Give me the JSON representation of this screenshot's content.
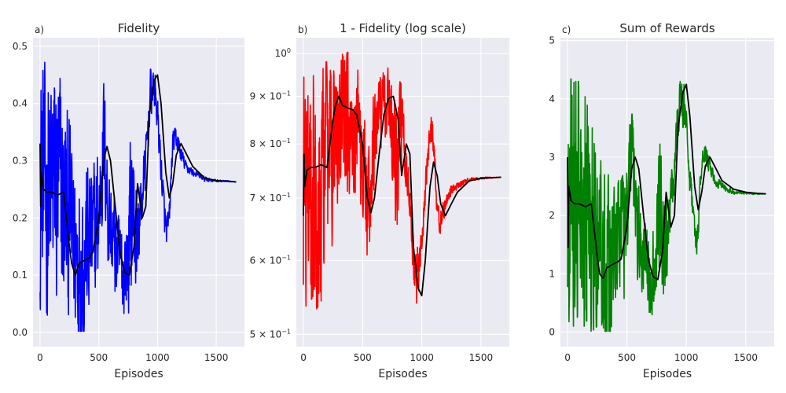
{
  "figure": {
    "background": "#ffffff",
    "axes_background": "#eaeaf2",
    "grid_color": "#ffffff",
    "smooth_color": "#000000"
  },
  "chart_data": [
    {
      "type": "line",
      "panel_label": "a)",
      "title": "Fidelity",
      "xlabel": "Episodes",
      "ylabel": "",
      "xlim": [
        -60,
        1740
      ],
      "ylim": [
        -0.025,
        0.515
      ],
      "x_ticks": [
        0,
        500,
        1000,
        1500
      ],
      "y_ticks": [
        0.0,
        0.1,
        0.2,
        0.3,
        0.4,
        0.5
      ],
      "y_tick_labels": [
        "0.0",
        "0.1",
        "0.2",
        "0.3",
        "0.4",
        "0.5"
      ],
      "yscale": "linear",
      "grid": true,
      "series": [
        {
          "color": "#0000ff",
          "width": 1.6,
          "noise": true,
          "x": [
            0,
            50,
            100,
            150,
            200,
            250,
            300,
            350,
            400,
            450,
            500,
            540,
            560,
            580,
            620,
            660,
            700,
            740,
            780,
            800,
            820,
            860,
            900,
            940,
            980,
            1000,
            1020,
            1060,
            1080,
            1100,
            1130,
            1160,
            1200,
            1240,
            1300,
            1400,
            1500,
            1600,
            1670
          ],
          "y": [
            0.26,
            0.25,
            0.25,
            0.24,
            0.22,
            0.2,
            0.15,
            0.14,
            0.15,
            0.16,
            0.2,
            0.34,
            0.29,
            0.21,
            0.16,
            0.13,
            0.11,
            0.12,
            0.22,
            0.2,
            0.16,
            0.22,
            0.3,
            0.42,
            0.42,
            0.38,
            0.32,
            0.2,
            0.17,
            0.2,
            0.33,
            0.34,
            0.31,
            0.29,
            0.28,
            0.268,
            0.265,
            0.264,
            0.263
          ],
          "amp": [
            0.22,
            0.22,
            0.22,
            0.22,
            0.2,
            0.17,
            0.15,
            0.16,
            0.14,
            0.13,
            0.12,
            0.1,
            0.1,
            0.1,
            0.09,
            0.08,
            0.07,
            0.1,
            0.16,
            0.12,
            0.1,
            0.05,
            0.04,
            0.04,
            0.04,
            0.03,
            0.03,
            0.03,
            0.03,
            0.025,
            0.02,
            0.02,
            0.015,
            0.01,
            0.006,
            0.004,
            0.002,
            0.001,
            0.0
          ]
        },
        {
          "color": "#000000",
          "width": 1.8,
          "noise": false,
          "x": [
            0,
            5,
            10,
            30,
            60,
            100,
            150,
            200,
            250,
            270,
            300,
            330,
            370,
            420,
            450,
            500,
            540,
            570,
            600,
            640,
            680,
            720,
            760,
            800,
            830,
            870,
            900,
            930,
            970,
            1000,
            1030,
            1070,
            1100,
            1130,
            1160,
            1200,
            1250,
            1300,
            1400,
            1500,
            1600,
            1670
          ],
          "y": [
            0.33,
            0.22,
            0.28,
            0.25,
            0.245,
            0.245,
            0.24,
            0.245,
            0.15,
            0.12,
            0.1,
            0.12,
            0.125,
            0.13,
            0.14,
            0.2,
            0.3,
            0.325,
            0.3,
            0.22,
            0.14,
            0.105,
            0.1,
            0.15,
            0.26,
            0.2,
            0.22,
            0.38,
            0.44,
            0.45,
            0.4,
            0.28,
            0.235,
            0.26,
            0.31,
            0.33,
            0.31,
            0.29,
            0.27,
            0.265,
            0.264,
            0.263
          ]
        }
      ]
    },
    {
      "type": "line",
      "panel_label": "b)",
      "title": "1 - Fidelity (log scale)",
      "xlabel": "Episodes",
      "ylabel": "",
      "xlim": [
        -60,
        1740
      ],
      "ylim": [
        0.485,
        1.04
      ],
      "x_ticks": [
        0,
        500,
        1000,
        1500
      ],
      "y_ticks": [
        0.5,
        0.6,
        0.7,
        0.8,
        0.9,
        1.0
      ],
      "y_tick_labels": [
        "5 × 10⁻¹",
        "6 × 10⁻¹",
        "7 × 10⁻¹",
        "8 × 10⁻¹",
        "9 × 10⁻¹",
        "10⁰"
      ],
      "yscale": "log",
      "grid": true,
      "series": [
        {
          "color": "#ff0000",
          "width": 1.6,
          "noise": true,
          "x": [
            0,
            50,
            100,
            150,
            200,
            250,
            300,
            350,
            400,
            450,
            500,
            540,
            560,
            580,
            620,
            660,
            700,
            740,
            780,
            800,
            820,
            860,
            900,
            940,
            980,
            1000,
            1020,
            1060,
            1080,
            1100,
            1130,
            1160,
            1200,
            1240,
            1300,
            1400,
            1500,
            1600,
            1670
          ],
          "y": [
            0.74,
            0.75,
            0.75,
            0.76,
            0.78,
            0.8,
            0.85,
            0.86,
            0.85,
            0.84,
            0.8,
            0.66,
            0.71,
            0.79,
            0.84,
            0.87,
            0.89,
            0.88,
            0.78,
            0.8,
            0.84,
            0.78,
            0.7,
            0.58,
            0.58,
            0.62,
            0.68,
            0.8,
            0.83,
            0.8,
            0.67,
            0.66,
            0.69,
            0.71,
            0.72,
            0.732,
            0.735,
            0.736,
            0.737
          ],
          "amp": [
            0.22,
            0.22,
            0.22,
            0.22,
            0.2,
            0.17,
            0.15,
            0.16,
            0.14,
            0.13,
            0.12,
            0.1,
            0.1,
            0.1,
            0.09,
            0.08,
            0.07,
            0.1,
            0.16,
            0.12,
            0.1,
            0.05,
            0.04,
            0.04,
            0.04,
            0.03,
            0.03,
            0.03,
            0.03,
            0.025,
            0.02,
            0.02,
            0.015,
            0.01,
            0.006,
            0.004,
            0.002,
            0.001,
            0.0
          ]
        },
        {
          "color": "#000000",
          "width": 1.8,
          "noise": false,
          "x": [
            0,
            5,
            10,
            30,
            60,
            100,
            150,
            200,
            250,
            270,
            300,
            330,
            370,
            420,
            450,
            500,
            540,
            570,
            600,
            640,
            680,
            720,
            760,
            800,
            830,
            870,
            900,
            930,
            970,
            1000,
            1030,
            1070,
            1100,
            1130,
            1160,
            1200,
            1250,
            1300,
            1400,
            1500,
            1600,
            1670
          ],
          "y": [
            0.67,
            0.78,
            0.72,
            0.75,
            0.755,
            0.755,
            0.76,
            0.755,
            0.85,
            0.88,
            0.9,
            0.88,
            0.875,
            0.87,
            0.86,
            0.8,
            0.7,
            0.675,
            0.7,
            0.78,
            0.86,
            0.895,
            0.9,
            0.85,
            0.74,
            0.8,
            0.78,
            0.62,
            0.56,
            0.55,
            0.6,
            0.72,
            0.765,
            0.74,
            0.69,
            0.67,
            0.69,
            0.71,
            0.73,
            0.735,
            0.736,
            0.737
          ]
        }
      ]
    },
    {
      "type": "line",
      "panel_label": "c)",
      "title": "Sum of Rewards",
      "xlabel": "Episodes",
      "ylabel": "",
      "xlim": [
        -60,
        1740
      ],
      "ylim": [
        -0.25,
        5.05
      ],
      "x_ticks": [
        0,
        500,
        1000,
        1500
      ],
      "y_ticks": [
        0,
        1,
        2,
        3,
        4,
        5
      ],
      "y_tick_labels": [
        "0",
        "1",
        "2",
        "3",
        "4",
        "5"
      ],
      "yscale": "linear",
      "grid": true,
      "series": [
        {
          "color": "#008000",
          "width": 1.6,
          "noise": true,
          "x": [
            0,
            50,
            100,
            150,
            200,
            250,
            300,
            350,
            400,
            450,
            500,
            540,
            560,
            580,
            620,
            660,
            700,
            740,
            780,
            800,
            820,
            860,
            900,
            940,
            980,
            1000,
            1020,
            1060,
            1080,
            1100,
            1130,
            1160,
            1200,
            1240,
            1300,
            1400,
            1500,
            1600,
            1670
          ],
          "y": [
            2.3,
            2.2,
            2.2,
            2.1,
            1.9,
            1.7,
            1.3,
            1.2,
            1.3,
            1.4,
            1.8,
            3.1,
            2.6,
            1.9,
            1.4,
            1.1,
            0.9,
            1.0,
            2.0,
            1.8,
            1.4,
            2.0,
            2.8,
            3.9,
            3.9,
            3.5,
            2.9,
            1.8,
            1.5,
            1.8,
            3.0,
            3.1,
            2.8,
            2.6,
            2.5,
            2.4,
            2.38,
            2.37,
            2.37
          ],
          "amp": [
            2.1,
            2.1,
            2.1,
            2.1,
            1.9,
            1.6,
            1.4,
            1.5,
            1.3,
            1.2,
            1.1,
            0.9,
            0.9,
            0.9,
            0.8,
            0.7,
            0.65,
            0.9,
            1.5,
            1.1,
            0.9,
            0.45,
            0.4,
            0.4,
            0.4,
            0.3,
            0.3,
            0.3,
            0.3,
            0.25,
            0.2,
            0.2,
            0.14,
            0.1,
            0.06,
            0.04,
            0.02,
            0.01,
            0.0
          ]
        },
        {
          "color": "#000000",
          "width": 1.8,
          "noise": false,
          "x": [
            0,
            5,
            10,
            30,
            60,
            100,
            150,
            200,
            250,
            270,
            300,
            330,
            370,
            420,
            450,
            500,
            540,
            570,
            600,
            640,
            680,
            720,
            760,
            800,
            830,
            870,
            900,
            930,
            970,
            1000,
            1030,
            1070,
            1100,
            1130,
            1160,
            1200,
            1250,
            1300,
            1400,
            1500,
            1600,
            1670
          ],
          "y": [
            3.0,
            1.45,
            2.5,
            2.25,
            2.2,
            2.2,
            2.15,
            2.2,
            1.3,
            1.0,
            0.92,
            1.1,
            1.15,
            1.2,
            1.25,
            1.8,
            2.8,
            3.0,
            2.8,
            2.0,
            1.25,
            0.95,
            0.9,
            1.4,
            2.4,
            1.8,
            2.0,
            3.5,
            4.1,
            4.25,
            3.7,
            2.5,
            2.1,
            2.4,
            2.85,
            3.0,
            2.8,
            2.6,
            2.45,
            2.4,
            2.38,
            2.37
          ]
        }
      ]
    }
  ]
}
